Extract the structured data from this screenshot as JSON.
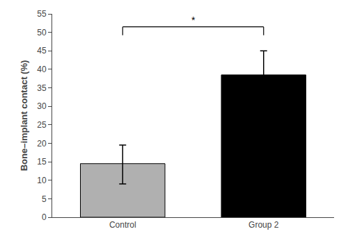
{
  "chart_data": {
    "type": "bar",
    "categories": [
      "Control",
      "Group 2"
    ],
    "values": [
      14.5,
      38.5
    ],
    "errors_up": [
      5.0,
      6.5
    ],
    "errors_down": [
      5.5,
      6.5
    ],
    "colors": [
      "#b0b0b0",
      "#000000"
    ],
    "ylabel": "Bone–implant contact (%)",
    "ylim": [
      0,
      55
    ],
    "yticks": [
      0,
      5,
      10,
      15,
      20,
      25,
      30,
      35,
      40,
      45,
      50,
      55
    ],
    "grid": false,
    "annotations": [
      {
        "text": "*",
        "y": 51.5,
        "from": "Control",
        "to": "Group 2"
      }
    ]
  }
}
